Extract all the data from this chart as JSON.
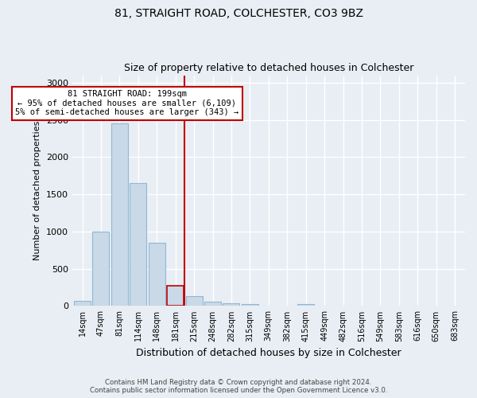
{
  "title1": "81, STRAIGHT ROAD, COLCHESTER, CO3 9BZ",
  "title2": "Size of property relative to detached houses in Colchester",
  "xlabel": "Distribution of detached houses by size in Colchester",
  "ylabel": "Number of detached properties",
  "footer1": "Contains HM Land Registry data © Crown copyright and database right 2024.",
  "footer2": "Contains public sector information licensed under the Open Government Licence v3.0.",
  "categories": [
    "14sqm",
    "47sqm",
    "81sqm",
    "114sqm",
    "148sqm",
    "181sqm",
    "215sqm",
    "248sqm",
    "282sqm",
    "315sqm",
    "349sqm",
    "382sqm",
    "415sqm",
    "449sqm",
    "482sqm",
    "516sqm",
    "549sqm",
    "583sqm",
    "616sqm",
    "650sqm",
    "683sqm"
  ],
  "values": [
    70,
    1000,
    2450,
    1650,
    850,
    270,
    130,
    60,
    40,
    30,
    5,
    0,
    25,
    5,
    0,
    0,
    0,
    0,
    0,
    0,
    0
  ],
  "bar_color": "#c9d9e8",
  "bar_edge_color": "#8fb8d4",
  "highlight_bar_index": 5,
  "highlight_bar_edge_color": "#c00000",
  "vline_x": 5.5,
  "vline_color": "#c00000",
  "ylim": [
    0,
    3100
  ],
  "yticks": [
    0,
    500,
    1000,
    1500,
    2000,
    2500,
    3000
  ],
  "annotation_text": "81 STRAIGHT ROAD: 199sqm\n← 95% of detached houses are smaller (6,109)\n5% of semi-detached houses are larger (343) →",
  "annotation_box_color": "#c00000",
  "background_color": "#e8eef4",
  "grid_color": "#ffffff"
}
